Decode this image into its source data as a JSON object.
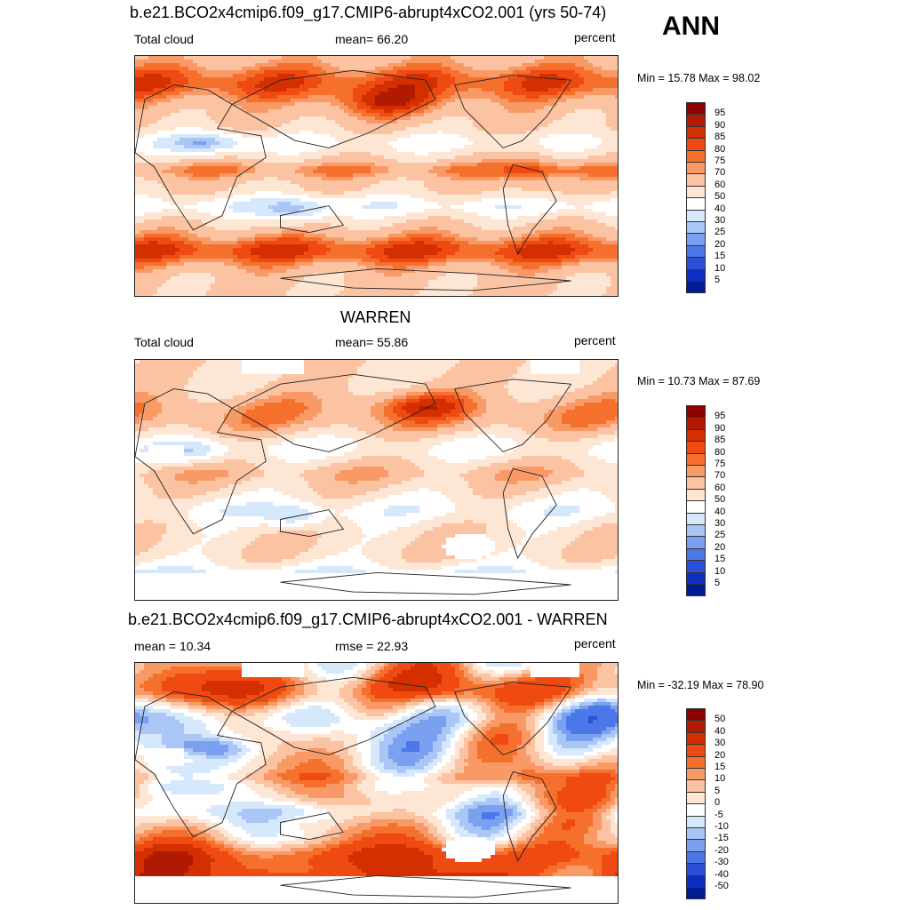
{
  "panels": [
    {
      "title": "b.e21.BCO2x4cmip6.f09_g17.CMIP6-abrupt4xCO2.001 (yrs 50-74)",
      "left_label": "Total cloud",
      "center_label": "mean=  66.20",
      "right_label": "percent",
      "minmax": "Min =  15.78 Max =  98.02",
      "field": "model"
    },
    {
      "title": "WARREN",
      "left_label": "Total cloud",
      "center_label": "mean=  55.86",
      "right_label": "percent",
      "minmax": "Min =  10.73 Max =  87.69",
      "field": "obs"
    },
    {
      "title": "b.e21.BCO2x4cmip6.f09_g17.CMIP6-abrupt4xCO2.001 - WARREN",
      "left_label": "mean =  10.34",
      "center_label": "rmse =  22.93",
      "right_label": "percent",
      "minmax": "Min = -32.19 Max =  78.90",
      "field": "diff"
    }
  ],
  "season": "ANN",
  "colorbars": {
    "absolute": {
      "labels": [
        "95",
        "90",
        "85",
        "80",
        "75",
        "70",
        "60",
        "50",
        "40",
        "30",
        "25",
        "20",
        "15",
        "10",
        "5"
      ],
      "colors": [
        "#8b0000",
        "#b01a00",
        "#d42f00",
        "#ef4a12",
        "#f5702d",
        "#f99a66",
        "#fbc3a2",
        "#fde6d4",
        "#ffffff",
        "#d6e8fb",
        "#a9c6f6",
        "#7aa0ef",
        "#4c77e8",
        "#2a50d9",
        "#0d2ec2",
        "#001b93"
      ]
    },
    "difference": {
      "labels": [
        "50",
        "40",
        "30",
        "20",
        "15",
        "10",
        "5",
        "0",
        "-5",
        "-10",
        "-15",
        "-20",
        "-30",
        "-40",
        "-50"
      ],
      "colors": [
        "#8b0000",
        "#b01a00",
        "#d42f00",
        "#ef4a12",
        "#f5702d",
        "#f99a66",
        "#fbc3a2",
        "#fde6d4",
        "#ffffff",
        "#d6e8fb",
        "#a9c6f6",
        "#7aa0ef",
        "#4c77e8",
        "#2a50d9",
        "#0d2ec2",
        "#001b93"
      ]
    }
  }
}
